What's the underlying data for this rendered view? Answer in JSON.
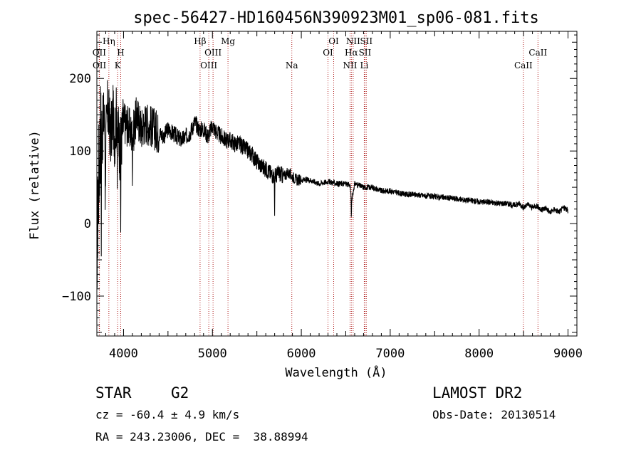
{
  "chart_data": {
    "type": "line",
    "title": "spec-56427-HD160456N390923M01_sp06-081.fits",
    "xlabel": "Wavelength (Å)",
    "ylabel": "Flux (relative)",
    "xlim": [
      3700,
      9100
    ],
    "ylim": [
      -155,
      265
    ],
    "xticks": [
      4000,
      5000,
      6000,
      7000,
      8000,
      9000
    ],
    "yticks": [
      -100,
      0,
      100,
      200
    ],
    "grid": false,
    "series": [
      {
        "x": [
          3700,
          3720,
          3740,
          3760,
          3780,
          3800,
          3820,
          3840,
          3860,
          3880,
          3900,
          3920,
          3940,
          3960,
          3980,
          4000,
          4050,
          4100,
          4150,
          4200,
          4250,
          4300,
          4350,
          4400,
          4450,
          4500,
          4550,
          4600,
          4650,
          4700,
          4750,
          4800,
          4850,
          4900,
          4950,
          5000,
          5050,
          5100,
          5150,
          5200,
          5250,
          5300,
          5350,
          5400,
          5450,
          5500,
          5550,
          5600,
          5650,
          5700,
          5750,
          5800,
          5850,
          5900,
          5950,
          6000,
          6100,
          6200,
          6300,
          6400,
          6500,
          6550,
          6563,
          6600,
          6700,
          6800,
          6900,
          7000,
          7100,
          7200,
          7300,
          7400,
          7500,
          7600,
          7700,
          7800,
          7900,
          8000,
          8100,
          8200,
          8300,
          8400,
          8450,
          8500,
          8550,
          8600,
          8650,
          8700,
          8750,
          8800,
          8850,
          8900,
          8950,
          9000
        ],
        "y": [
          -40,
          60,
          130,
          120,
          150,
          110,
          160,
          140,
          120,
          150,
          120,
          150,
          130,
          100,
          120,
          140,
          135,
          120,
          150,
          130,
          140,
          135,
          130,
          125,
          120,
          130,
          125,
          120,
          115,
          120,
          125,
          140,
          130,
          130,
          120,
          135,
          125,
          120,
          115,
          115,
          110,
          110,
          105,
          100,
          95,
          85,
          80,
          75,
          70,
          65,
          70,
          65,
          70,
          65,
          60,
          60,
          60,
          55,
          58,
          55,
          55,
          52,
          30,
          55,
          50,
          50,
          45,
          45,
          42,
          40,
          40,
          38,
          37,
          36,
          35,
          33,
          32,
          30,
          30,
          28,
          28,
          25,
          28,
          22,
          26,
          22,
          25,
          18,
          22,
          15,
          20,
          16,
          22,
          18
        ]
      }
    ],
    "lines": [
      {
        "label": "OII",
        "x": 3727,
        "row": 2
      },
      {
        "label": "OII",
        "x": 3729,
        "row": 3
      },
      {
        "label": "Hη",
        "x": 3835,
        "row": 1
      },
      {
        "label": "H",
        "x": 3968,
        "row": 2
      },
      {
        "label": "K",
        "x": 3934,
        "row": 3
      },
      {
        "label": "Hβ",
        "x": 4861,
        "row": 1
      },
      {
        "label": "OIII",
        "x": 5007,
        "row": 2
      },
      {
        "label": "OIII",
        "x": 4959,
        "row": 3
      },
      {
        "label": "Mg",
        "x": 5175,
        "row": 1
      },
      {
        "label": "Na",
        "x": 5893,
        "row": 3
      },
      {
        "label": "OI",
        "x": 6364,
        "row": 1
      },
      {
        "label": "OI",
        "x": 6300,
        "row": 2
      },
      {
        "label": "NII",
        "x": 6583,
        "row": 1
      },
      {
        "label": "Hα",
        "x": 6563,
        "row": 2
      },
      {
        "label": "NII",
        "x": 6548,
        "row": 3
      },
      {
        "label": "SII",
        "x": 6731,
        "row": 1
      },
      {
        "label": "SII",
        "x": 6716,
        "row": 2
      },
      {
        "label": "Li",
        "x": 6708,
        "row": 3
      },
      {
        "label": "CaII",
        "x": 8662,
        "row": 2
      },
      {
        "label": "CaII",
        "x": 8498,
        "row": 3
      }
    ]
  },
  "info": {
    "class_label": "STAR",
    "subclass": "G2",
    "cz": "cz = -60.4 ± 4.9 km/s",
    "radec": "RA = 243.23006, DEC =  38.88994",
    "survey": "LAMOST DR2",
    "obs_date": "Obs-Date: 20130514"
  }
}
